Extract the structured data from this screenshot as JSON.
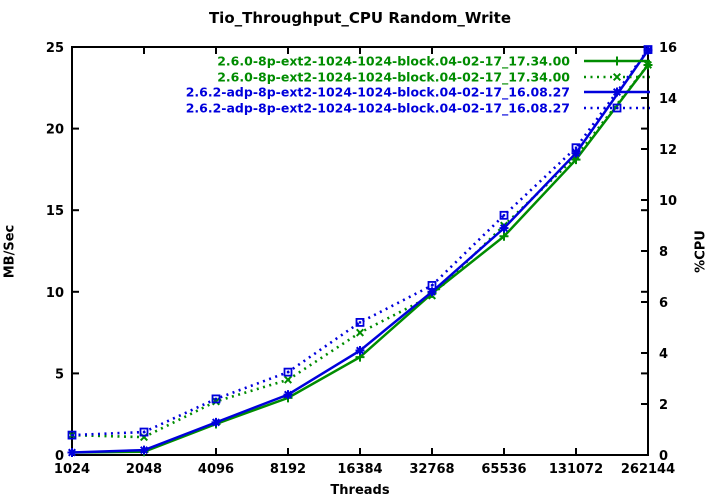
{
  "chart_data": {
    "type": "line",
    "title": "Tio_Throughput_CPU Random_Write",
    "xlabel": "Threads",
    "ylabel_left": "MB/Sec",
    "ylabel_right": "%CPU",
    "x_scale": "log2",
    "x": [
      1024,
      2048,
      4096,
      8192,
      16384,
      32768,
      65536,
      131072,
      262144
    ],
    "x_tick_labels": [
      "1024",
      "2048",
      "4096",
      "8192",
      "16384",
      "32768",
      "65536",
      "131072",
      "262144"
    ],
    "y_left": {
      "min": 0,
      "max": 25,
      "ticks": [
        0,
        5,
        10,
        15,
        20,
        25
      ]
    },
    "y_right": {
      "min": 0,
      "max": 16,
      "ticks": [
        0,
        2,
        4,
        6,
        8,
        10,
        12,
        14,
        16
      ]
    },
    "grid": false,
    "legend_position": "top-right-inside",
    "colors": {
      "green": "#008C00",
      "blue": "#0000DC",
      "axis": "#000000",
      "background": "#FFFFFF"
    },
    "series": [
      {
        "name": "2.6.0-8p-ext2-1024-1024-block.04-02-17_17.34.00",
        "axis": "left",
        "unit": "MB/Sec",
        "color": "green",
        "line": "solid",
        "marker": "plus",
        "values": [
          0.15,
          0.2,
          1.9,
          3.5,
          6.0,
          9.9,
          13.4,
          18.1,
          23.9
        ]
      },
      {
        "name": "2.6.0-8p-ext2-1024-1024-block.04-02-17_17.34.00",
        "axis": "right",
        "unit": "%CPU",
        "color": "green",
        "line": "dotted",
        "marker": "cross",
        "values": [
          0.78,
          0.7,
          2.1,
          2.95,
          4.8,
          6.25,
          9.0,
          11.7,
          15.3
        ]
      },
      {
        "name": "2.6.2-adp-8p-ext2-1024-1024-block.04-02-17_16.08.27",
        "axis": "left",
        "unit": "MB/Sec",
        "color": "blue",
        "line": "solid",
        "marker": "asterisk",
        "values": [
          0.15,
          0.3,
          2.0,
          3.7,
          6.4,
          10.0,
          13.9,
          18.5,
          24.8
        ]
      },
      {
        "name": "2.6.2-adp-8p-ext2-1024-1024-block.04-02-17_16.08.27",
        "axis": "right",
        "unit": "%CPU",
        "color": "blue",
        "line": "dotted",
        "marker": "square",
        "values": [
          0.78,
          0.9,
          2.2,
          3.25,
          5.2,
          6.65,
          9.4,
          12.05,
          15.9
        ]
      }
    ]
  }
}
